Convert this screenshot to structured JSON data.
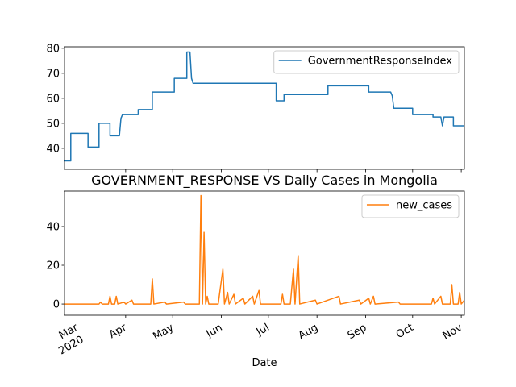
{
  "chart_data": [
    {
      "type": "line",
      "xlim": [
        "2020-02-22",
        "2020-11-03"
      ],
      "ylim": [
        31.6,
        80.6
      ],
      "yticks": [
        40,
        50,
        60,
        70,
        80
      ],
      "legend": "upper right",
      "series": [
        {
          "name": "GovernmentResponseIndex",
          "color": "#1f77b4",
          "x": [
            "2020-02-22",
            "2020-02-26",
            "2020-02-26",
            "2020-03-08",
            "2020-03-08",
            "2020-03-15",
            "2020-03-15",
            "2020-03-22",
            "2020-03-22",
            "2020-03-28",
            "2020-03-29",
            "2020-03-30",
            "2020-04-09",
            "2020-04-09",
            "2020-04-18",
            "2020-04-18",
            "2020-05-02",
            "2020-05-02",
            "2020-05-10",
            "2020-05-10",
            "2020-05-12",
            "2020-05-13",
            "2020-05-14",
            "2020-07-06",
            "2020-07-06",
            "2020-07-11",
            "2020-07-11",
            "2020-08-08",
            "2020-08-08",
            "2020-09-03",
            "2020-09-03",
            "2020-09-17",
            "2020-09-18",
            "2020-09-19",
            "2020-10-01",
            "2020-10-01",
            "2020-10-14",
            "2020-10-14",
            "2020-10-19",
            "2020-10-20",
            "2020-10-21",
            "2020-10-27",
            "2020-10-27",
            "2020-11-03"
          ],
          "values": [
            35,
            35,
            46,
            46,
            40.5,
            40.5,
            50,
            50,
            45,
            45,
            52,
            53.5,
            53.5,
            55.5,
            55.5,
            62.5,
            62.5,
            68,
            68,
            78.5,
            78.5,
            68,
            66,
            66,
            59,
            59,
            61.5,
            61.5,
            65,
            65,
            62.5,
            62.5,
            61,
            56,
            56,
            53.5,
            53.5,
            52.5,
            52.5,
            49,
            52.5,
            52.5,
            49,
            49
          ]
        }
      ]
    },
    {
      "type": "line",
      "title": "GOVERNMENT_RESPONSE VS Daily Cases in Mongolia",
      "x_label": "Date",
      "x_year_label": "2020",
      "xlim": [
        "2020-02-22",
        "2020-11-03"
      ],
      "ylim": [
        -5.8,
        58.3
      ],
      "yticks": [
        0,
        20,
        40
      ],
      "legend": "upper right",
      "xticks": [
        {
          "value": "2020-03-01",
          "label": "Mar"
        },
        {
          "value": "2020-04-01",
          "label": "Apr"
        },
        {
          "value": "2020-05-01",
          "label": "May"
        },
        {
          "value": "2020-06-01",
          "label": "Jun"
        },
        {
          "value": "2020-07-01",
          "label": "Jul"
        },
        {
          "value": "2020-08-01",
          "label": "Aug"
        },
        {
          "value": "2020-09-01",
          "label": "Sep"
        },
        {
          "value": "2020-10-01",
          "label": "Oct"
        },
        {
          "value": "2020-11-01",
          "label": "Nov"
        }
      ],
      "series": [
        {
          "name": "new_cases",
          "color": "#ff7f0e",
          "x": [
            "2020-02-22",
            "2020-03-15",
            "2020-03-16",
            "2020-03-17",
            "2020-03-21",
            "2020-03-22",
            "2020-03-23",
            "2020-03-25",
            "2020-03-26",
            "2020-03-27",
            "2020-03-31",
            "2020-04-01",
            "2020-04-05",
            "2020-04-06",
            "2020-04-17",
            "2020-04-18",
            "2020-04-19",
            "2020-04-26",
            "2020-04-27",
            "2020-05-08",
            "2020-05-09",
            "2020-05-18",
            "2020-05-19",
            "2020-05-20",
            "2020-05-21",
            "2020-05-22",
            "2020-05-23",
            "2020-05-24",
            "2020-05-30",
            "2020-06-02",
            "2020-06-03",
            "2020-06-05",
            "2020-06-06",
            "2020-06-09",
            "2020-06-10",
            "2020-06-15",
            "2020-06-16",
            "2020-06-21",
            "2020-06-22",
            "2020-06-25",
            "2020-06-26",
            "2020-07-09",
            "2020-07-10",
            "2020-07-11",
            "2020-07-15",
            "2020-07-17",
            "2020-07-18",
            "2020-07-20",
            "2020-07-21",
            "2020-07-31",
            "2020-08-01",
            "2020-08-15",
            "2020-08-16",
            "2020-08-28",
            "2020-08-29",
            "2020-09-03",
            "2020-09-04",
            "2020-09-06",
            "2020-09-07",
            "2020-09-22",
            "2020-09-23",
            "2020-10-13",
            "2020-10-14",
            "2020-10-15",
            "2020-10-19",
            "2020-10-20",
            "2020-10-25",
            "2020-10-26",
            "2020-10-27",
            "2020-10-30",
            "2020-10-31",
            "2020-11-01",
            "2020-11-03"
          ],
          "values": [
            0,
            0,
            1,
            0,
            0,
            4,
            0,
            0,
            4,
            0,
            1,
            0,
            2,
            0,
            0,
            13,
            0,
            1,
            0,
            1,
            0,
            0,
            56,
            0,
            37,
            0,
            4,
            0,
            0,
            18,
            0,
            6,
            0,
            5,
            0,
            3,
            0,
            4,
            0,
            7,
            0,
            0,
            5,
            0,
            0,
            18,
            0,
            25,
            0,
            2,
            0,
            4,
            0,
            2,
            0,
            3,
            0,
            4,
            0,
            1,
            0,
            0,
            3,
            0,
            4,
            0,
            0,
            10,
            0,
            0,
            6,
            0,
            2
          ]
        }
      ]
    }
  ]
}
